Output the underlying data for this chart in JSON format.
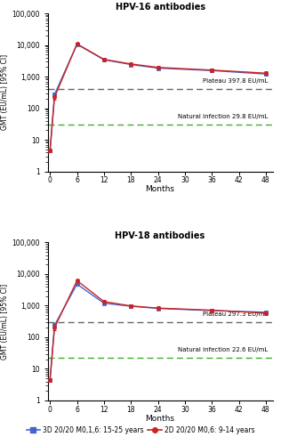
{
  "title_top": "HPV-16 antibodies",
  "title_bottom": "HPV-18 antibodies",
  "ylabel": "GMT (EU/mL) [95% CI]",
  "xlabel": "Months",
  "xticks": [
    0,
    6,
    12,
    18,
    24,
    30,
    36,
    42,
    48
  ],
  "ylim": [
    1,
    100000
  ],
  "hpv16_3d_x": [
    0,
    1,
    6,
    12,
    18,
    24,
    36,
    48
  ],
  "hpv16_3d_y": [
    4.5,
    270,
    10500,
    3400,
    2400,
    1850,
    1550,
    1200
  ],
  "hpv16_3d_lo": [
    4.0,
    230,
    9800,
    3100,
    2150,
    1650,
    1380,
    1060
  ],
  "hpv16_3d_hi": [
    5.0,
    320,
    11200,
    3700,
    2650,
    2050,
    1750,
    1360
  ],
  "hpv16_2d_x": [
    0,
    1,
    6,
    12,
    18,
    24,
    36,
    48
  ],
  "hpv16_2d_y": [
    4.5,
    220,
    10800,
    3500,
    2500,
    1950,
    1600,
    1280
  ],
  "hpv16_2d_lo": [
    4.0,
    185,
    10100,
    3200,
    2250,
    1730,
    1420,
    1130
  ],
  "hpv16_2d_hi": [
    5.0,
    260,
    11600,
    3850,
    2780,
    2180,
    1800,
    1440
  ],
  "hpv18_3d_x": [
    0,
    1,
    6,
    12,
    18,
    24,
    36,
    48
  ],
  "hpv18_3d_y": [
    4.5,
    240,
    4800,
    1200,
    960,
    820,
    700,
    620
  ],
  "hpv18_3d_lo": [
    4.0,
    200,
    4400,
    1080,
    860,
    730,
    620,
    550
  ],
  "hpv18_3d_hi": [
    5.0,
    290,
    5200,
    1330,
    1070,
    920,
    790,
    700
  ],
  "hpv18_2d_x": [
    0,
    1,
    6,
    12,
    18,
    24,
    36,
    48
  ],
  "hpv18_2d_y": [
    4.5,
    200,
    6200,
    1350,
    980,
    840,
    720,
    580
  ],
  "hpv18_2d_lo": [
    4.0,
    165,
    5700,
    1200,
    870,
    740,
    630,
    510
  ],
  "hpv18_2d_hi": [
    5.0,
    240,
    6800,
    1510,
    1100,
    950,
    820,
    660
  ],
  "plateau_hpv16": 397.8,
  "plateau_hpv18": 297.3,
  "natural_hpv16": 29.8,
  "natural_hpv18": 22.6,
  "plateau_label_hpv16": "Plateau 397.8 EU/mL",
  "plateau_label_hpv18": "Plateau 297.3 EU/mL",
  "natural_label_hpv16": "Natural infection 29.8 EU/mL",
  "natural_label_hpv18": "Natural infection 22.6 EU/mL",
  "color_3d": "#4466cc",
  "color_2d": "#cc2222",
  "color_plateau": "#666666",
  "color_natural": "#44aa33",
  "legend_3d": "3D 20/20 M0,1,6: 15-25 years",
  "legend_2d": "2D 20/20 M0,6: 9-14 years",
  "yticks": [
    1,
    10,
    100,
    1000,
    10000,
    100000
  ],
  "ytick_labels": [
    "1",
    "10",
    "100",
    "1,000",
    "10,000",
    "100,000"
  ]
}
